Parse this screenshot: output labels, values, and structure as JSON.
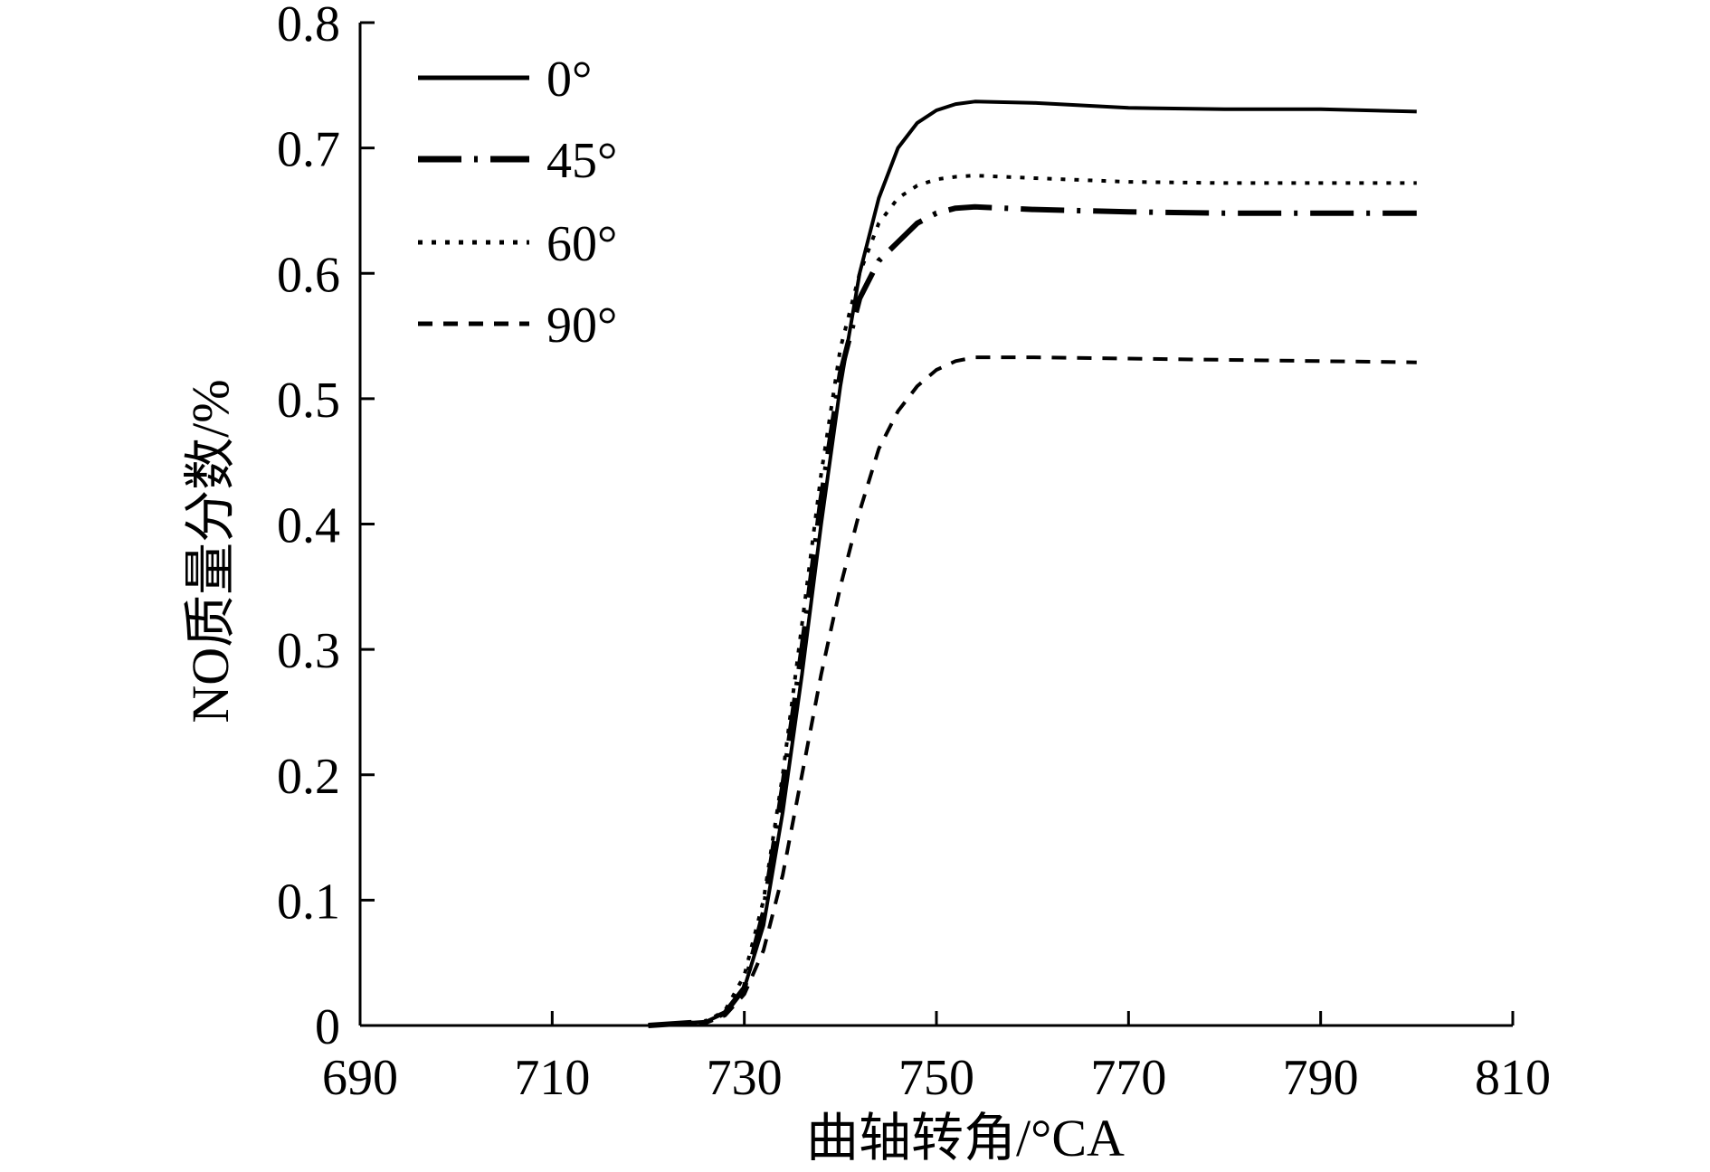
{
  "chart_data": {
    "type": "line",
    "xlabel": "曲轴转角/°CA",
    "ylabel": "NO质量分数/%",
    "xlim": [
      690,
      810
    ],
    "ylim": [
      0,
      0.8
    ],
    "x_ticks": [
      690,
      710,
      730,
      750,
      770,
      790,
      810
    ],
    "x_tick_labels": [
      "690",
      "710",
      "730",
      "750",
      "770",
      "790",
      "810"
    ],
    "y_ticks": [
      0,
      0.1,
      0.2,
      0.3,
      0.4,
      0.5,
      0.6,
      0.7,
      0.8
    ],
    "y_tick_labels": [
      "0",
      "0.1",
      "0.2",
      "0.3",
      "0.4",
      "0.5",
      "0.6",
      "0.7",
      "0.8"
    ],
    "grid": false,
    "legend_position": "top-left",
    "series": [
      {
        "name": "0°",
        "style": "solid",
        "x": [
          720,
          726,
          728,
          730,
          732,
          734,
          736,
          738,
          740,
          742,
          744,
          746,
          748,
          750,
          752,
          754,
          760,
          770,
          780,
          790,
          800
        ],
        "y": [
          0,
          0.003,
          0.01,
          0.03,
          0.08,
          0.17,
          0.28,
          0.4,
          0.51,
          0.6,
          0.66,
          0.7,
          0.72,
          0.73,
          0.735,
          0.737,
          0.736,
          0.732,
          0.731,
          0.731,
          0.729
        ]
      },
      {
        "name": "45°",
        "style": "dashdot",
        "x": [
          720,
          726,
          728,
          730,
          732,
          734,
          736,
          738,
          740,
          742,
          744,
          746,
          748,
          750,
          752,
          754,
          760,
          770,
          780,
          790,
          800
        ],
        "y": [
          0,
          0.003,
          0.01,
          0.03,
          0.09,
          0.19,
          0.3,
          0.42,
          0.52,
          0.58,
          0.61,
          0.625,
          0.64,
          0.648,
          0.652,
          0.653,
          0.651,
          0.649,
          0.648,
          0.648,
          0.648
        ]
      },
      {
        "name": "60°",
        "style": "dotted",
        "x": [
          720,
          726,
          728,
          730,
          732,
          734,
          736,
          738,
          740,
          742,
          744,
          746,
          748,
          750,
          752,
          754,
          760,
          770,
          780,
          790,
          800
        ],
        "y": [
          0,
          0.003,
          0.012,
          0.04,
          0.1,
          0.2,
          0.32,
          0.44,
          0.54,
          0.6,
          0.64,
          0.66,
          0.67,
          0.675,
          0.677,
          0.678,
          0.676,
          0.673,
          0.672,
          0.672,
          0.672
        ]
      },
      {
        "name": "90°",
        "style": "dashed",
        "x": [
          720,
          726,
          728,
          730,
          732,
          734,
          736,
          738,
          740,
          742,
          744,
          746,
          748,
          750,
          752,
          754,
          760,
          770,
          780,
          790,
          800
        ],
        "y": [
          0,
          0.002,
          0.008,
          0.025,
          0.06,
          0.12,
          0.2,
          0.28,
          0.35,
          0.41,
          0.46,
          0.49,
          0.51,
          0.523,
          0.53,
          0.533,
          0.533,
          0.532,
          0.531,
          0.53,
          0.529
        ]
      }
    ]
  }
}
